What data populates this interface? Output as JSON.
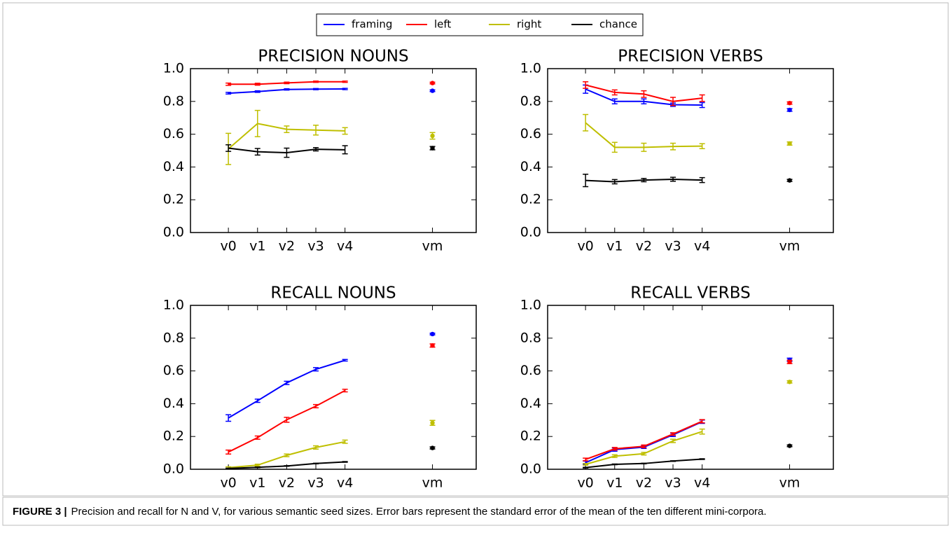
{
  "legend": [
    {
      "name": "framing",
      "color": "#0000ff"
    },
    {
      "name": "left",
      "color": "#ff0000"
    },
    {
      "name": "right",
      "color": "#bfbf00"
    },
    {
      "name": "chance",
      "color": "#000000"
    }
  ],
  "caption_label": "FIGURE 3 |",
  "caption_text": "Precision and recall for N and V, for various semantic seed sizes. Error bars represent the standard error of the mean of the ten different mini-corpora.",
  "chart_data": [
    {
      "type": "line",
      "title": "PRECISION NOUNS",
      "x": [
        0,
        1,
        2,
        3,
        4
      ],
      "vm_x": 7,
      "xlim": [
        -1.3,
        8.5
      ],
      "ylim": [
        0,
        1
      ],
      "xticks": [
        {
          "value": 0,
          "label": "v0"
        },
        {
          "value": 1,
          "label": "v1"
        },
        {
          "value": 2,
          "label": "v2"
        },
        {
          "value": 3,
          "label": "v3"
        },
        {
          "value": 4,
          "label": "v4"
        },
        {
          "value": 7,
          "label": "vm"
        }
      ],
      "yticks": [
        {
          "value": 0,
          "label": "0.0"
        },
        0.2,
        0.4,
        0.6,
        0.8,
        {
          "value": 1,
          "label": "1.0"
        }
      ],
      "series": [
        {
          "values": [
            0.85,
            0.86,
            0.873,
            0.875,
            0.876
          ],
          "errors": [
            0.005,
            0.005,
            0.004,
            0.004,
            0.004
          ],
          "vm_value": 0.865,
          "vm_error": 0.005
        },
        {
          "values": [
            0.905,
            0.905,
            0.913,
            0.92,
            0.92
          ],
          "errors": [
            0.007,
            0.006,
            0.005,
            0.004,
            0.004
          ],
          "vm_value": 0.912,
          "vm_error": 0.005
        },
        {
          "values": [
            0.51,
            0.665,
            0.63,
            0.625,
            0.62
          ],
          "errors": [
            0.095,
            0.08,
            0.02,
            0.03,
            0.02
          ],
          "vm_value": 0.59,
          "vm_error": 0.02
        },
        {
          "values": [
            0.515,
            0.493,
            0.487,
            0.508,
            0.505
          ],
          "errors": [
            0.02,
            0.02,
            0.028,
            0.01,
            0.025
          ],
          "vm_value": 0.515,
          "vm_error": 0.01
        }
      ]
    },
    {
      "type": "line",
      "title": "PRECISION VERBS",
      "x": [
        0,
        1,
        2,
        3,
        4
      ],
      "vm_x": 7,
      "xlim": [
        -1.3,
        8.5
      ],
      "ylim": [
        0,
        1
      ],
      "xticks": [
        {
          "value": 0,
          "label": "v0"
        },
        {
          "value": 1,
          "label": "v1"
        },
        {
          "value": 2,
          "label": "v2"
        },
        {
          "value": 3,
          "label": "v3"
        },
        {
          "value": 4,
          "label": "v4"
        },
        {
          "value": 7,
          "label": "vm"
        }
      ],
      "yticks": [
        {
          "value": 0,
          "label": "0.0"
        },
        0.2,
        0.4,
        0.6,
        0.8,
        {
          "value": 1,
          "label": "1.0"
        }
      ],
      "series": [
        {
          "values": [
            0.875,
            0.8,
            0.8,
            0.78,
            0.778
          ],
          "errors": [
            0.025,
            0.015,
            0.015,
            0.01,
            0.015
          ],
          "vm_value": 0.748,
          "vm_error": 0.008
        },
        {
          "values": [
            0.9,
            0.855,
            0.845,
            0.8,
            0.82
          ],
          "errors": [
            0.02,
            0.015,
            0.02,
            0.025,
            0.02
          ],
          "vm_value": 0.79,
          "vm_error": 0.007
        },
        {
          "values": [
            0.67,
            0.52,
            0.52,
            0.525,
            0.527
          ],
          "errors": [
            0.05,
            0.03,
            0.025,
            0.02,
            0.015
          ],
          "vm_value": 0.543,
          "vm_error": 0.01
        },
        {
          "values": [
            0.318,
            0.31,
            0.32,
            0.325,
            0.32
          ],
          "errors": [
            0.038,
            0.013,
            0.01,
            0.012,
            0.015
          ],
          "vm_value": 0.318,
          "vm_error": 0.006
        }
      ]
    },
    {
      "type": "line",
      "title": "RECALL NOUNS",
      "x": [
        0,
        1,
        2,
        3,
        4
      ],
      "vm_x": 7,
      "xlim": [
        -1.3,
        8.5
      ],
      "ylim": [
        0,
        1
      ],
      "xticks": [
        {
          "value": 0,
          "label": "v0"
        },
        {
          "value": 1,
          "label": "v1"
        },
        {
          "value": 2,
          "label": "v2"
        },
        {
          "value": 3,
          "label": "v3"
        },
        {
          "value": 4,
          "label": "v4"
        },
        {
          "value": 7,
          "label": "vm"
        }
      ],
      "yticks": [
        {
          "value": 0,
          "label": "0.0"
        },
        0.2,
        0.4,
        0.6,
        0.8,
        {
          "value": 1,
          "label": "1.0"
        }
      ],
      "series": [
        {
          "values": [
            0.313,
            0.418,
            0.527,
            0.61,
            0.665
          ],
          "errors": [
            0.02,
            0.01,
            0.01,
            0.01,
            0.005
          ],
          "vm_value": 0.825,
          "vm_error": 0.005
        },
        {
          "values": [
            0.105,
            0.193,
            0.302,
            0.385,
            0.48
          ],
          "errors": [
            0.012,
            0.01,
            0.015,
            0.01,
            0.008
          ],
          "vm_value": 0.755,
          "vm_error": 0.01
        },
        {
          "values": [
            0.01,
            0.025,
            0.085,
            0.133,
            0.168
          ],
          "errors": [
            0.005,
            0.006,
            0.008,
            0.01,
            0.01
          ],
          "vm_value": 0.283,
          "vm_error": 0.015
        },
        {
          "values": [
            0.005,
            0.012,
            0.02,
            0.035,
            0.045
          ],
          "errors": [
            0.002,
            0.002,
            0.002,
            0.002,
            0.002
          ],
          "vm_value": 0.13,
          "vm_error": 0.006
        }
      ]
    },
    {
      "type": "line",
      "title": "RECALL VERBS",
      "x": [
        0,
        1,
        2,
        3,
        4
      ],
      "vm_x": 7,
      "xlim": [
        -1.3,
        8.5
      ],
      "ylim": [
        0,
        1
      ],
      "xticks": [
        {
          "value": 0,
          "label": "v0"
        },
        {
          "value": 1,
          "label": "v1"
        },
        {
          "value": 2,
          "label": "v2"
        },
        {
          "value": 3,
          "label": "v3"
        },
        {
          "value": 4,
          "label": "v4"
        },
        {
          "value": 7,
          "label": "vm"
        }
      ],
      "yticks": [
        {
          "value": 0,
          "label": "0.0"
        },
        0.2,
        0.4,
        0.6,
        0.8,
        {
          "value": 1,
          "label": "1.0"
        }
      ],
      "series": [
        {
          "values": [
            0.04,
            0.12,
            0.135,
            0.21,
            0.29
          ],
          "errors": [
            0.01,
            0.01,
            0.008,
            0.01,
            0.01
          ],
          "vm_value": 0.668,
          "vm_error": 0.01
        },
        {
          "values": [
            0.06,
            0.125,
            0.14,
            0.215,
            0.293
          ],
          "errors": [
            0.008,
            0.008,
            0.008,
            0.008,
            0.01
          ],
          "vm_value": 0.655,
          "vm_error": 0.01
        },
        {
          "values": [
            0.03,
            0.08,
            0.095,
            0.173,
            0.23
          ],
          "errors": [
            0.005,
            0.008,
            0.008,
            0.01,
            0.015
          ],
          "vm_value": 0.533,
          "vm_error": 0.007
        },
        {
          "values": [
            0.01,
            0.03,
            0.035,
            0.05,
            0.062
          ],
          "errors": [
            0.002,
            0.002,
            0.002,
            0.002,
            0.002
          ],
          "vm_value": 0.143,
          "vm_error": 0.005
        }
      ]
    }
  ]
}
